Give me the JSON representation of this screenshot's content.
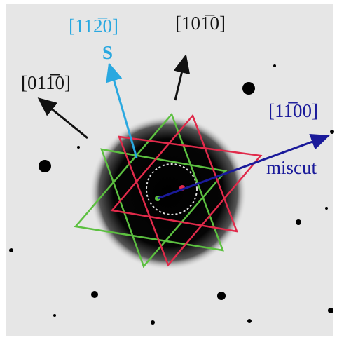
{
  "annotations": [
    {
      "text": "[112̅0]"
    },
    {
      "text": "S"
    },
    {
      "text": "[101̅0]"
    },
    {
      "text": "[011̅0]"
    },
    {
      "text": "[11̅00]"
    },
    {
      "text": "miscut"
    }
  ]
}
